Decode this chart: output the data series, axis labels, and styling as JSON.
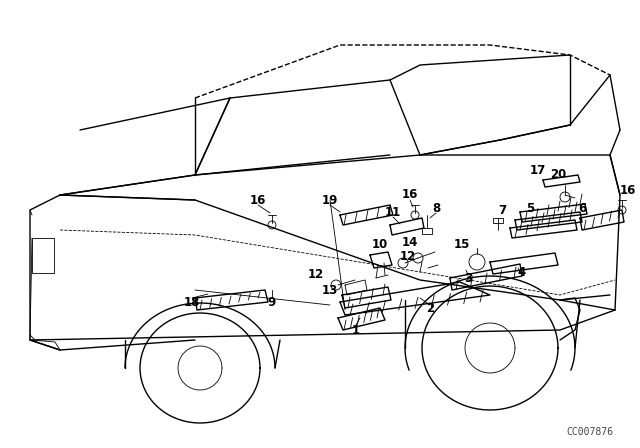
{
  "background_color": "#ffffff",
  "line_color": "#000000",
  "text_color": "#000000",
  "watermark": "CC007876",
  "fig_width": 6.4,
  "fig_height": 4.48,
  "dpi": 100
}
